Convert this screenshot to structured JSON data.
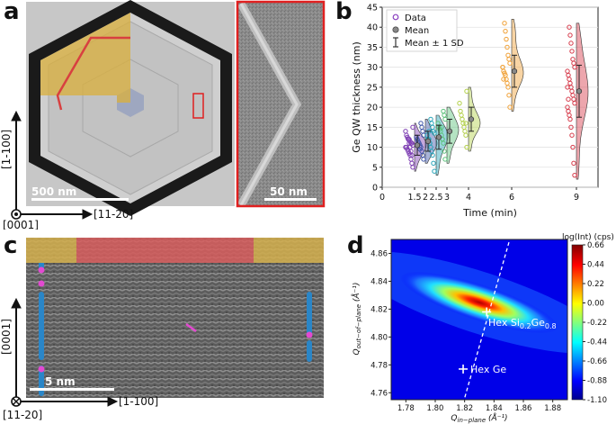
{
  "panels": {
    "a": {
      "letter": "a",
      "scalebar_main": "500 nm",
      "scalebar_inset": "50 nm",
      "axis_vertical": "[1-100]",
      "axis_horizontal": "[11-20]",
      "axis_origin": "[0001]"
    },
    "b": {
      "letter": "b",
      "legend": [
        "Data",
        "Mean",
        "Mean ± 1 SD"
      ]
    },
    "c": {
      "letter": "c",
      "scalebar": "5 nm",
      "axis_vertical": "[0001]",
      "axis_horizontal": "[1-100]",
      "axis_origin": "[11-20]"
    },
    "d": {
      "letter": "d",
      "colorbar_title": "log(Int) (cps)",
      "colorbar_ticks": [
        "0.66",
        "0.44",
        "0.22",
        "0.00",
        "-0.22",
        "-0.44",
        "-0.66",
        "-0.88",
        "-1.10"
      ],
      "label_hex_sige": "Hex Si",
      "label_hex_sige_sub1": "0.2",
      "label_hex_sige_mid": "Ge",
      "label_hex_sige_sub2": "0.8",
      "label_hex_ge": "Hex Ge",
      "ylabel_main": "Q",
      "ylabel_sub": "out−of−plane",
      "ylabel_unit": " (Å⁻¹)",
      "xlabel_main": "Q",
      "xlabel_sub": "in−plane",
      "xlabel_unit": " (Å⁻¹)"
    }
  },
  "chart_data": [
    {
      "type": "scatter",
      "panel": "b",
      "title": "",
      "xlabel": "Time (min)",
      "ylabel": "Ge QW thickness (nm)",
      "xlim": [
        0,
        10
      ],
      "ylim": [
        0,
        45
      ],
      "xticks": [
        "0",
        "1.5",
        "2",
        "2.5",
        "3",
        "4",
        "6",
        "9"
      ],
      "xtick_values": [
        0,
        1.5,
        2,
        2.5,
        3,
        4,
        6,
        9
      ],
      "yticks": [
        "0",
        "5",
        "10",
        "15",
        "20",
        "25",
        "30",
        "35",
        "40",
        "45"
      ],
      "series": [
        {
          "name": "1.5 min",
          "x": 1.5,
          "color": "#7e3fb3",
          "mean": 10.5,
          "sd": 2.5,
          "points": [
            5,
            6,
            7,
            8,
            8.5,
            9,
            9.5,
            10,
            10,
            10.5,
            11,
            11,
            11.5,
            12,
            12,
            12.5,
            13,
            14,
            15,
            8,
            9,
            10,
            11,
            12
          ]
        },
        {
          "name": "2 min",
          "x": 2,
          "color": "#3f56a8",
          "mean": 11.5,
          "sd": 2.5,
          "points": [
            7,
            8,
            9,
            10,
            10.5,
            11,
            11.5,
            12,
            12.5,
            13,
            14,
            15,
            16,
            9.5,
            11
          ]
        },
        {
          "name": "2.5 min",
          "x": 2.5,
          "color": "#26a3b8",
          "mean": 12.5,
          "sd": 3,
          "points": [
            4,
            6,
            8,
            9,
            10,
            11,
            12,
            12,
            13,
            13.5,
            14,
            15,
            16,
            17,
            11,
            14
          ]
        },
        {
          "name": "3 min",
          "x": 3,
          "color": "#5cc27a",
          "mean": 14,
          "sd": 3,
          "points": [
            7,
            9,
            11,
            12,
            13,
            14,
            14.5,
            15,
            16,
            17,
            18,
            19,
            12,
            15
          ]
        },
        {
          "name": "4 min",
          "x": 4,
          "color": "#b3d04a",
          "mean": 17,
          "sd": 3,
          "points": [
            10,
            13,
            14,
            15,
            16,
            17,
            18,
            19,
            21,
            24,
            16
          ]
        },
        {
          "name": "6 min",
          "x": 6,
          "color": "#f0a035",
          "mean": 29,
          "sd": 4,
          "points": [
            20,
            23,
            25,
            26,
            27,
            28,
            28.5,
            29,
            30,
            31,
            32,
            33,
            35,
            37,
            39,
            41,
            27,
            30
          ]
        },
        {
          "name": "9 min",
          "x": 9,
          "color": "#d63a4a",
          "mean": 24,
          "sd": 6.5,
          "points": [
            3,
            6,
            10,
            13,
            15,
            17,
            18,
            19,
            20,
            21,
            22,
            23,
            24,
            25,
            26,
            27,
            28,
            29,
            30,
            31,
            32,
            34,
            36,
            38,
            40,
            22,
            25
          ]
        }
      ]
    },
    {
      "type": "heatmap",
      "panel": "d",
      "xlabel": "Q_in-plane (Å⁻¹)",
      "ylabel": "Q_out-of-plane (Å⁻¹)",
      "xlim": [
        1.77,
        1.89
      ],
      "ylim": [
        4.755,
        4.87
      ],
      "xticks": [
        "1.78",
        "1.80",
        "1.82",
        "1.84",
        "1.86",
        "1.88"
      ],
      "xtick_values": [
        1.78,
        1.8,
        1.82,
        1.84,
        1.86,
        1.88
      ],
      "yticks": [
        "4.76",
        "4.78",
        "4.80",
        "4.82",
        "4.84",
        "4.86"
      ],
      "ytick_values": [
        4.76,
        4.78,
        4.8,
        4.82,
        4.84,
        4.86
      ],
      "colorbar_range": [
        -1.1,
        0.66
      ],
      "peaks": [
        {
          "label": "Hex Si0.2Ge0.8",
          "qx": 1.835,
          "qz": 4.818
        },
        {
          "label": "Hex Ge",
          "qx": 1.819,
          "qz": 4.777
        }
      ]
    }
  ]
}
